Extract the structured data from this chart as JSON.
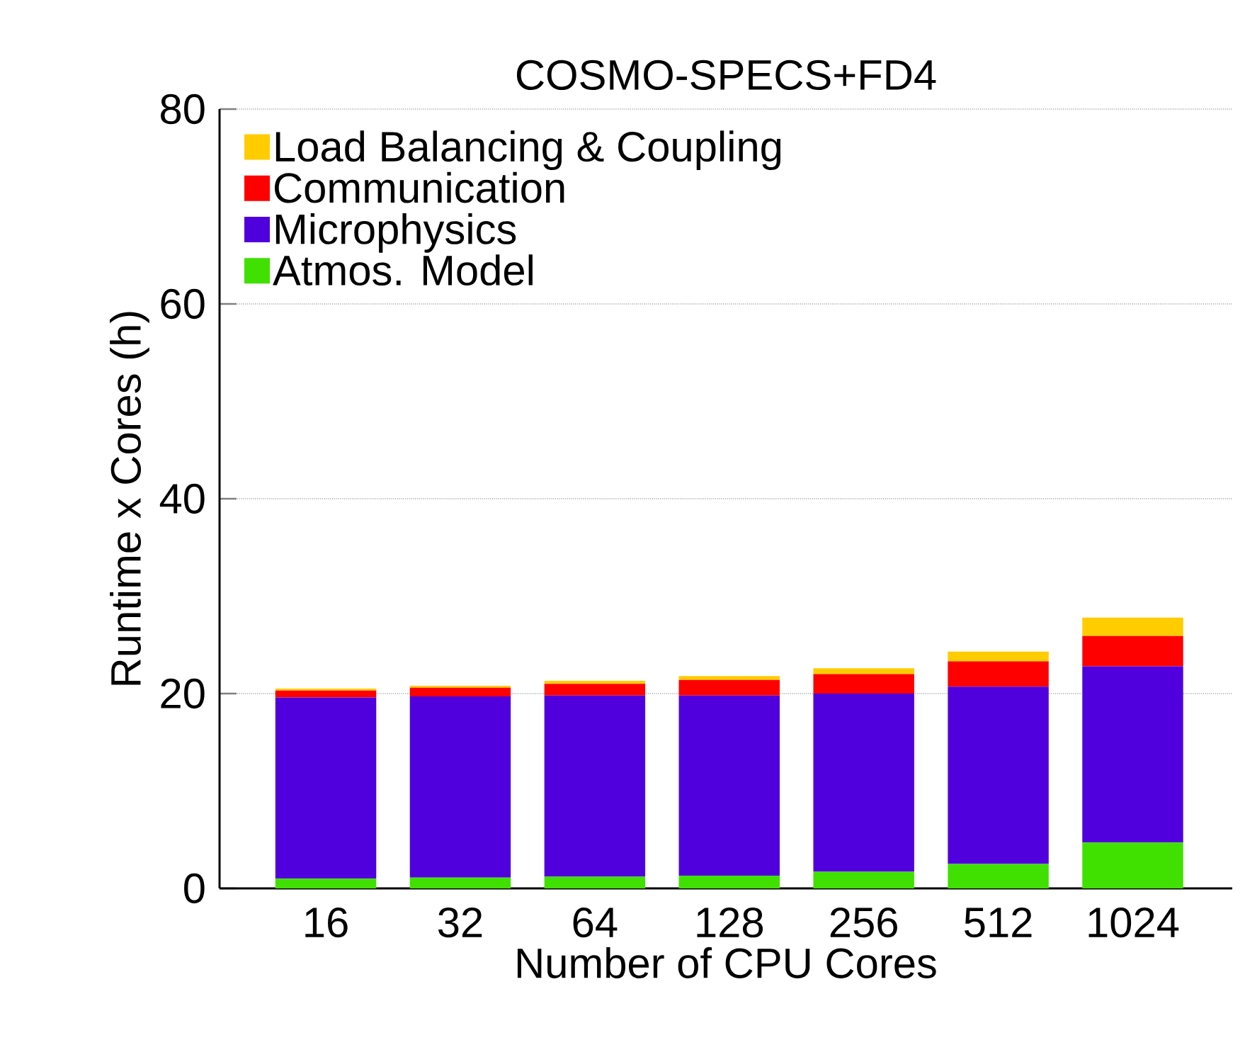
{
  "chart_data": {
    "type": "bar",
    "stacked": true,
    "title": "COSMO-SPECS+FD4",
    "xlabel": "Number of CPU Cores",
    "ylabel": "Runtime x Cores (h)",
    "categories": [
      "16",
      "32",
      "64",
      "128",
      "256",
      "512",
      "1024"
    ],
    "series": [
      {
        "name": "Atmos. Model",
        "color": "#40e000",
        "values": [
          1.0,
          1.1,
          1.2,
          1.3,
          1.7,
          2.5,
          4.7
        ]
      },
      {
        "name": "Microphysics",
        "color": "#5000dd",
        "values": [
          18.6,
          18.6,
          18.6,
          18.5,
          18.3,
          18.2,
          18.1
        ]
      },
      {
        "name": "Communication",
        "color": "#ff0000",
        "values": [
          0.7,
          0.9,
          1.2,
          1.6,
          2.0,
          2.6,
          3.1
        ]
      },
      {
        "name": "Load Balancing & Coupling",
        "color": "#ffcc00",
        "values": [
          0.2,
          0.2,
          0.3,
          0.4,
          0.6,
          1.0,
          1.9
        ]
      }
    ],
    "ylim": [
      0,
      80
    ],
    "yticks": [
      0,
      20,
      40,
      60,
      80
    ],
    "grid": "y",
    "legend": "top left"
  }
}
